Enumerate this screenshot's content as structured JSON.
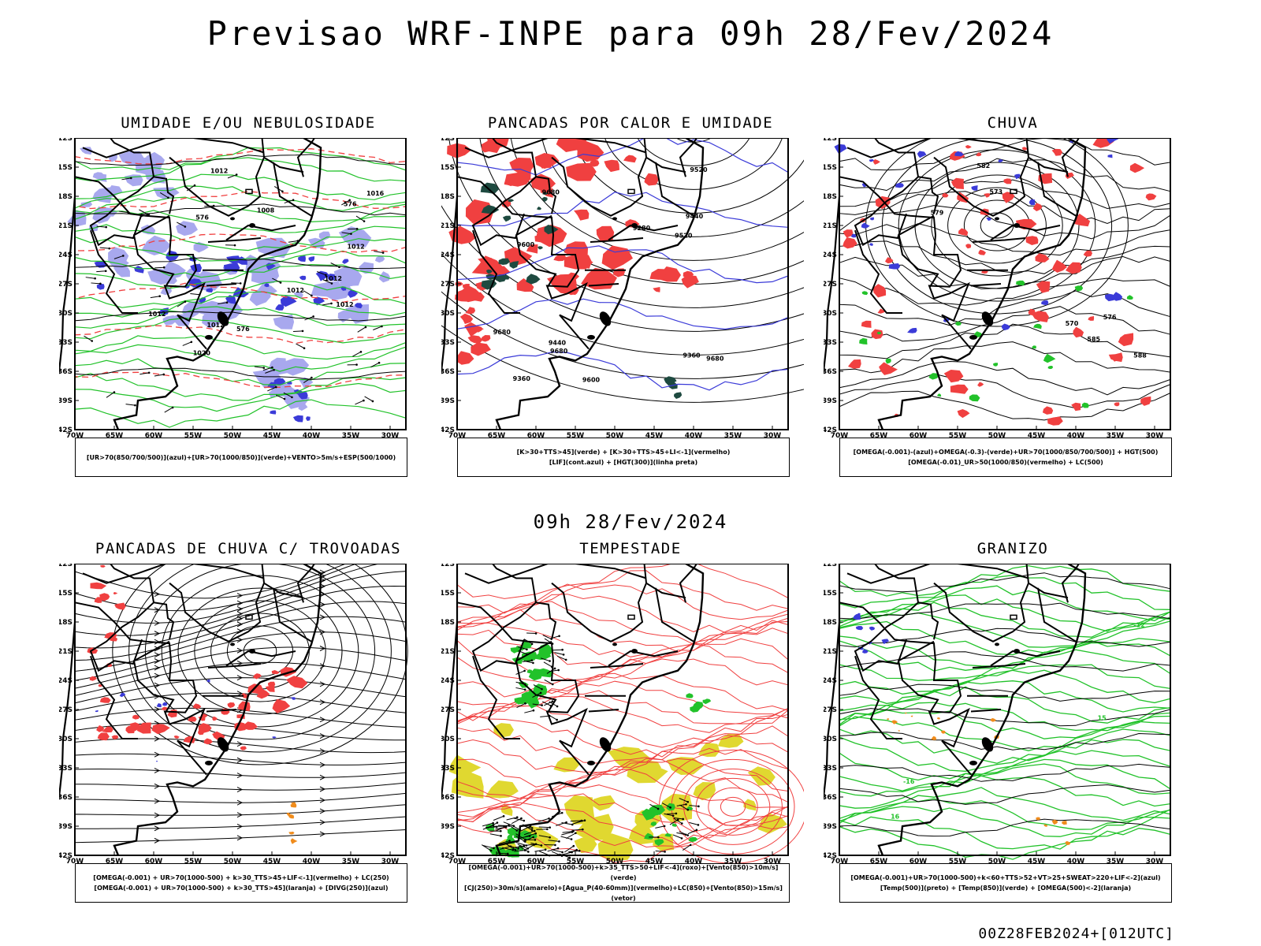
{
  "title": "Previsao WRF-INPE  para 09h 28/Fev/2024",
  "subtitle": "09h 28/Fev/2024",
  "footer_code": "00Z28FEB2024+[012UTC]",
  "lat_ticks": [
    "12S",
    "15S",
    "18S",
    "21S",
    "24S",
    "27S",
    "30S",
    "33S",
    "36S",
    "39S",
    "42S"
  ],
  "lon_ticks": [
    "70W",
    "65W",
    "60W",
    "55W",
    "50W",
    "45W",
    "40W",
    "35W",
    "30W"
  ],
  "colors": {
    "blue": "#3b3bd8",
    "lightblue": "#a8a8ee",
    "green": "#22c22a",
    "red": "#f04040",
    "darkgreen": "#1e4a40",
    "yellow": "#e0d830",
    "orange": "#f08c1c"
  },
  "panels": [
    {
      "title": "UMIDADE E/OU NEBULOSIDADE",
      "legend": [
        "[UR>70(850/700/500)](azul)+[UR>70(1000/850)](verde)+VENTO>5m/s+ESP(500/1000)"
      ],
      "contour_labels": [
        "1012",
        "1012",
        "1012",
        "1016",
        "1008",
        "1012",
        "1012",
        "1012",
        "1012",
        "1020",
        "576",
        "576",
        "576"
      ]
    },
    {
      "title": "PANCADAS POR CALOR E UMIDADE",
      "legend": [
        "[K>30+TTS>45](verde) + [K>30+TTS>45+LI<-1](vermelho)",
        "[LIF](cont.azul) + [HGT(300)](linha preta)"
      ],
      "contour_labels": [
        "9680",
        "9680",
        "9680",
        "9680",
        "9600",
        "9600",
        "9520",
        "9520",
        "9440",
        "9440",
        "9360",
        "9360",
        "9280"
      ]
    },
    {
      "title": "CHUVA",
      "legend": [
        "[OMEGA(-0.001)-(azul)+OMEGA(-0.3)-(verde)+UR>70(1000/850/700/500)] + HGT(500)",
        "[OMEGA(-0.01)_UR>50(1000/850)(vermelho) + LC(500)"
      ],
      "contour_labels": [
        "588",
        "585",
        "582",
        "579",
        "576",
        "573",
        "570"
      ]
    },
    {
      "title": "PANCADAS DE CHUVA C/ TROVOADAS",
      "legend": [
        "[OMEGA(-0.001) + UR>70(1000-500) + k>30_TTS>45+LIF<-1](vermelho) + LC(250)",
        "[OMEGA(-0.001) + UR>70(1000-500) + k>30_TTS>45](laranja) + [DIVG(250)](azul)"
      ],
      "contour_labels": []
    },
    {
      "title": "TEMPESTADE",
      "legend": [
        "[OMEGA(-0.001)+UR>70(1000-500)+k>35_TTS>50+LIF<-4](roxo)+[Vento(850)>10m/s](verde)",
        "[CJ(250)>30m/s](amarelo)+[Agua_P(40-60mm)](vermelho)+LC(850)+[Vento(850)>15m/s](vetor)"
      ],
      "contour_labels": []
    },
    {
      "title": "GRANIZO",
      "legend": [
        "[OMEGA(-0.001)+UR>70(1000-500)+k<60+TTS>52+VT>25+SWEAT>220+LIF<-2](azul)",
        "[Temp(500)](preto) + [Temp(850)](verde) + [OMEGA(500)<-2](laranja)"
      ],
      "contour_labels": [
        "-12",
        "-16",
        "15",
        "16"
      ]
    }
  ]
}
